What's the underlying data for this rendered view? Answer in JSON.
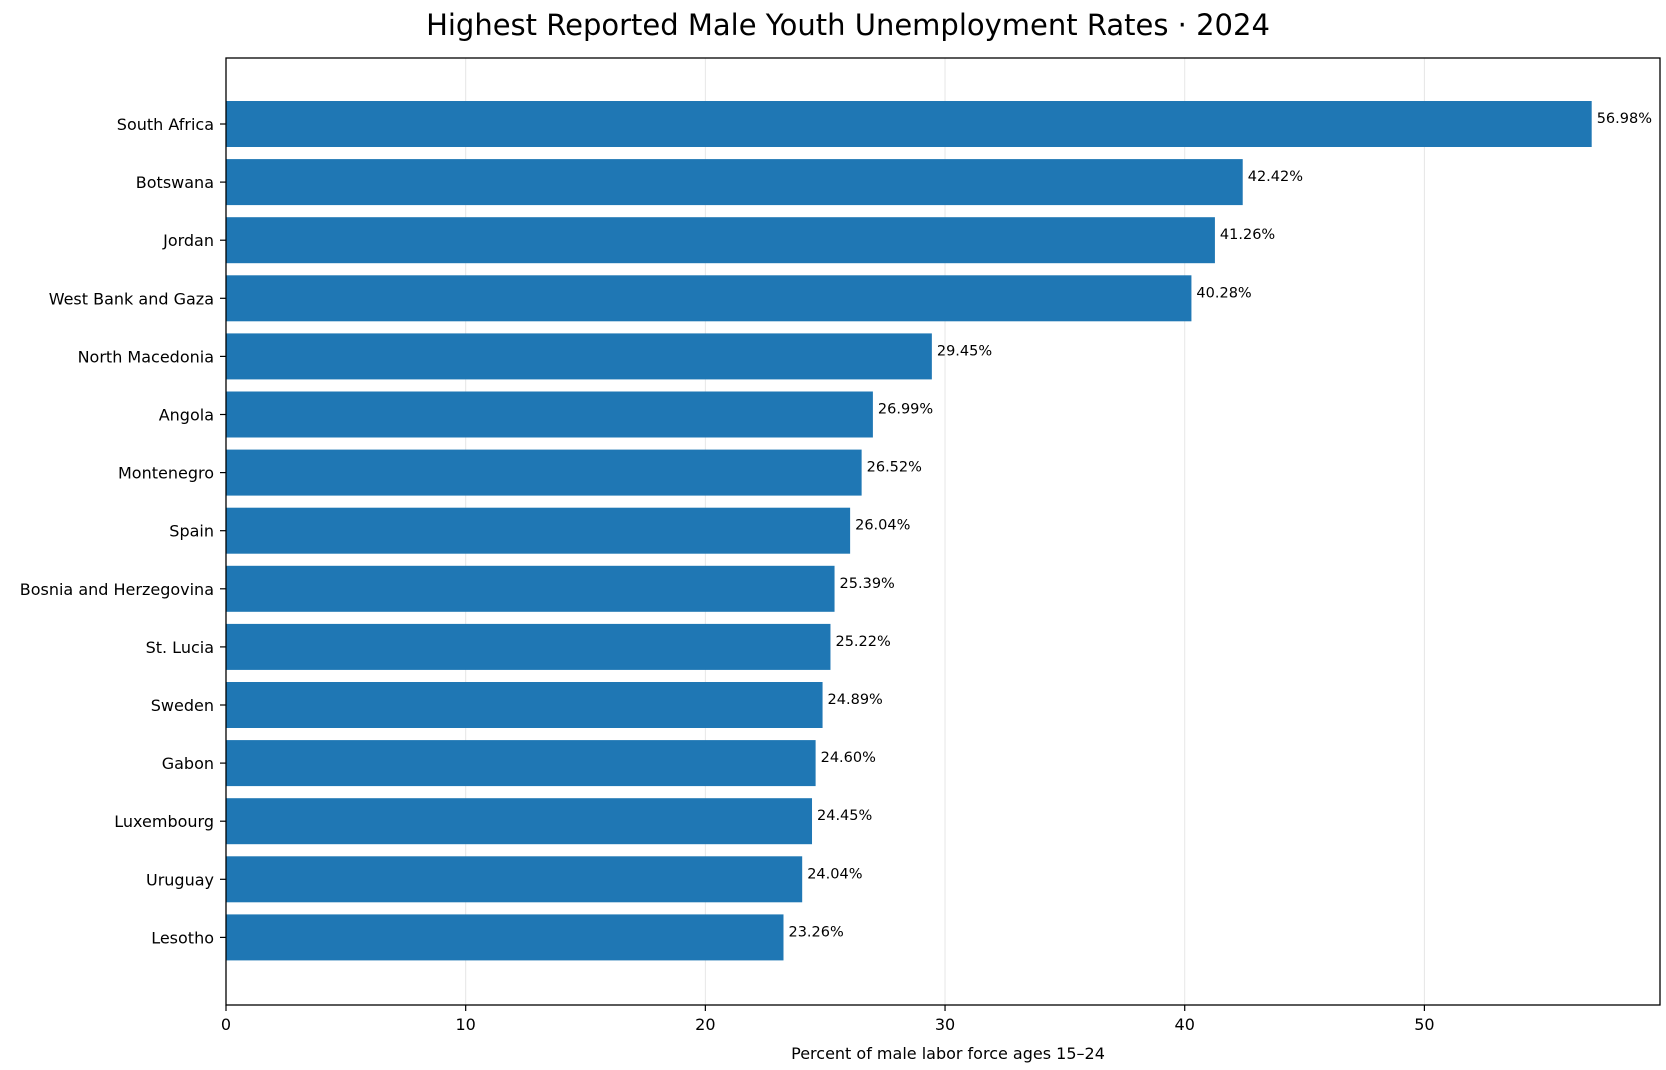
{
  "chart_data": {
    "type": "bar",
    "orientation": "horizontal",
    "title": "Highest Reported Male Youth Unemployment Rates · 2024",
    "xlabel": "Percent of male labor force ages 15–24",
    "ylabel": "",
    "xlim": [
      0,
      59.83
    ],
    "xticks": [
      0,
      10,
      20,
      30,
      40,
      50
    ],
    "grid": "x",
    "bar_color": "#1f77b4",
    "value_suffix": "%",
    "categories": [
      "South Africa",
      "Botswana",
      "Jordan",
      "West Bank and Gaza",
      "North Macedonia",
      "Angola",
      "Montenegro",
      "Spain",
      "Bosnia and Herzegovina",
      "St. Lucia",
      "Sweden",
      "Gabon",
      "Luxembourg",
      "Uruguay",
      "Lesotho"
    ],
    "values": [
      56.98,
      42.42,
      41.26,
      40.28,
      29.45,
      26.99,
      26.52,
      26.04,
      25.39,
      25.22,
      24.89,
      24.6,
      24.45,
      24.04,
      23.26
    ]
  }
}
